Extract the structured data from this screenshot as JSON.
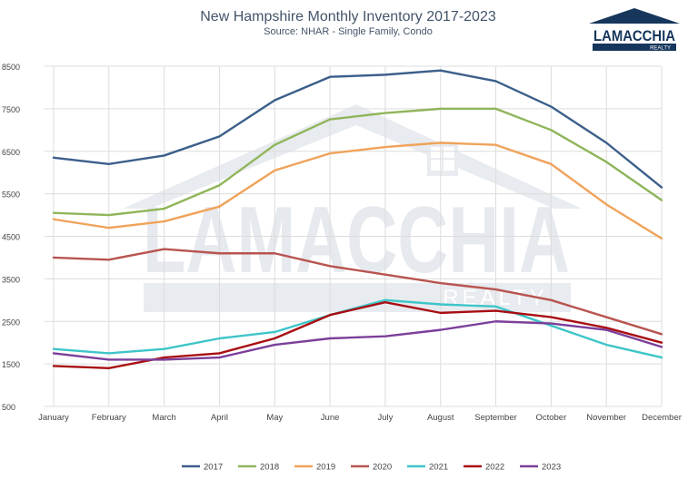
{
  "chart_data": {
    "type": "line",
    "title": "New Hampshire Monthly Inventory 2017-2023",
    "subtitle": "Source: NHAR - Single Family, Condo",
    "xlabel": "",
    "ylabel": "",
    "ylim": [
      500,
      8500
    ],
    "yticks": [
      "8500",
      "7500",
      "6500",
      "5500",
      "4500",
      "3500",
      "2500",
      "1500",
      "500"
    ],
    "grid": true,
    "legend_position": "bottom",
    "categories": [
      "January",
      "February",
      "March",
      "April",
      "May",
      "June",
      "July",
      "August",
      "September",
      "October",
      "November",
      "December"
    ],
    "series": [
      {
        "name": "2017",
        "color": "#3b5f8a",
        "values": [
          6350,
          6200,
          6400,
          6850,
          7700,
          8250,
          8300,
          8400,
          8150,
          7550,
          6700,
          5650
        ]
      },
      {
        "name": "2018",
        "color": "#8fb55a",
        "values": [
          5050,
          5000,
          5150,
          5700,
          6650,
          7250,
          7400,
          7500,
          7500,
          7000,
          6250,
          5350
        ]
      },
      {
        "name": "2019",
        "color": "#f0a25a",
        "values": [
          4900,
          4700,
          4850,
          5200,
          6050,
          6450,
          6600,
          6700,
          6650,
          6200,
          5250,
          4450
        ]
      },
      {
        "name": "2020",
        "color": "#b85450",
        "values": [
          4000,
          3950,
          4200,
          4100,
          4100,
          3800,
          3600,
          3400,
          3250,
          3000,
          2600,
          2200
        ]
      },
      {
        "name": "2021",
        "color": "#3ec5c8",
        "values": [
          1850,
          1750,
          1850,
          2100,
          2250,
          2650,
          3000,
          2900,
          2850,
          2400,
          1950,
          1650
        ]
      },
      {
        "name": "2022",
        "color": "#a80e12",
        "values": [
          1450,
          1400,
          1650,
          1750,
          2100,
          2650,
          2950,
          2700,
          2750,
          2600,
          2350,
          2000
        ]
      },
      {
        "name": "2023",
        "color": "#7b3f9a",
        "values": [
          1750,
          1600,
          1600,
          1650,
          1950,
          2100,
          2150,
          2300,
          2500,
          2450,
          2300,
          1900
        ]
      }
    ]
  },
  "logo": {
    "name": "LAMACCHIA",
    "sub": "REALTY",
    "color": "#16365c"
  },
  "watermark": {
    "text": "LAMACCHIA",
    "sub": "REALTY",
    "color": "#e6e9ee"
  }
}
